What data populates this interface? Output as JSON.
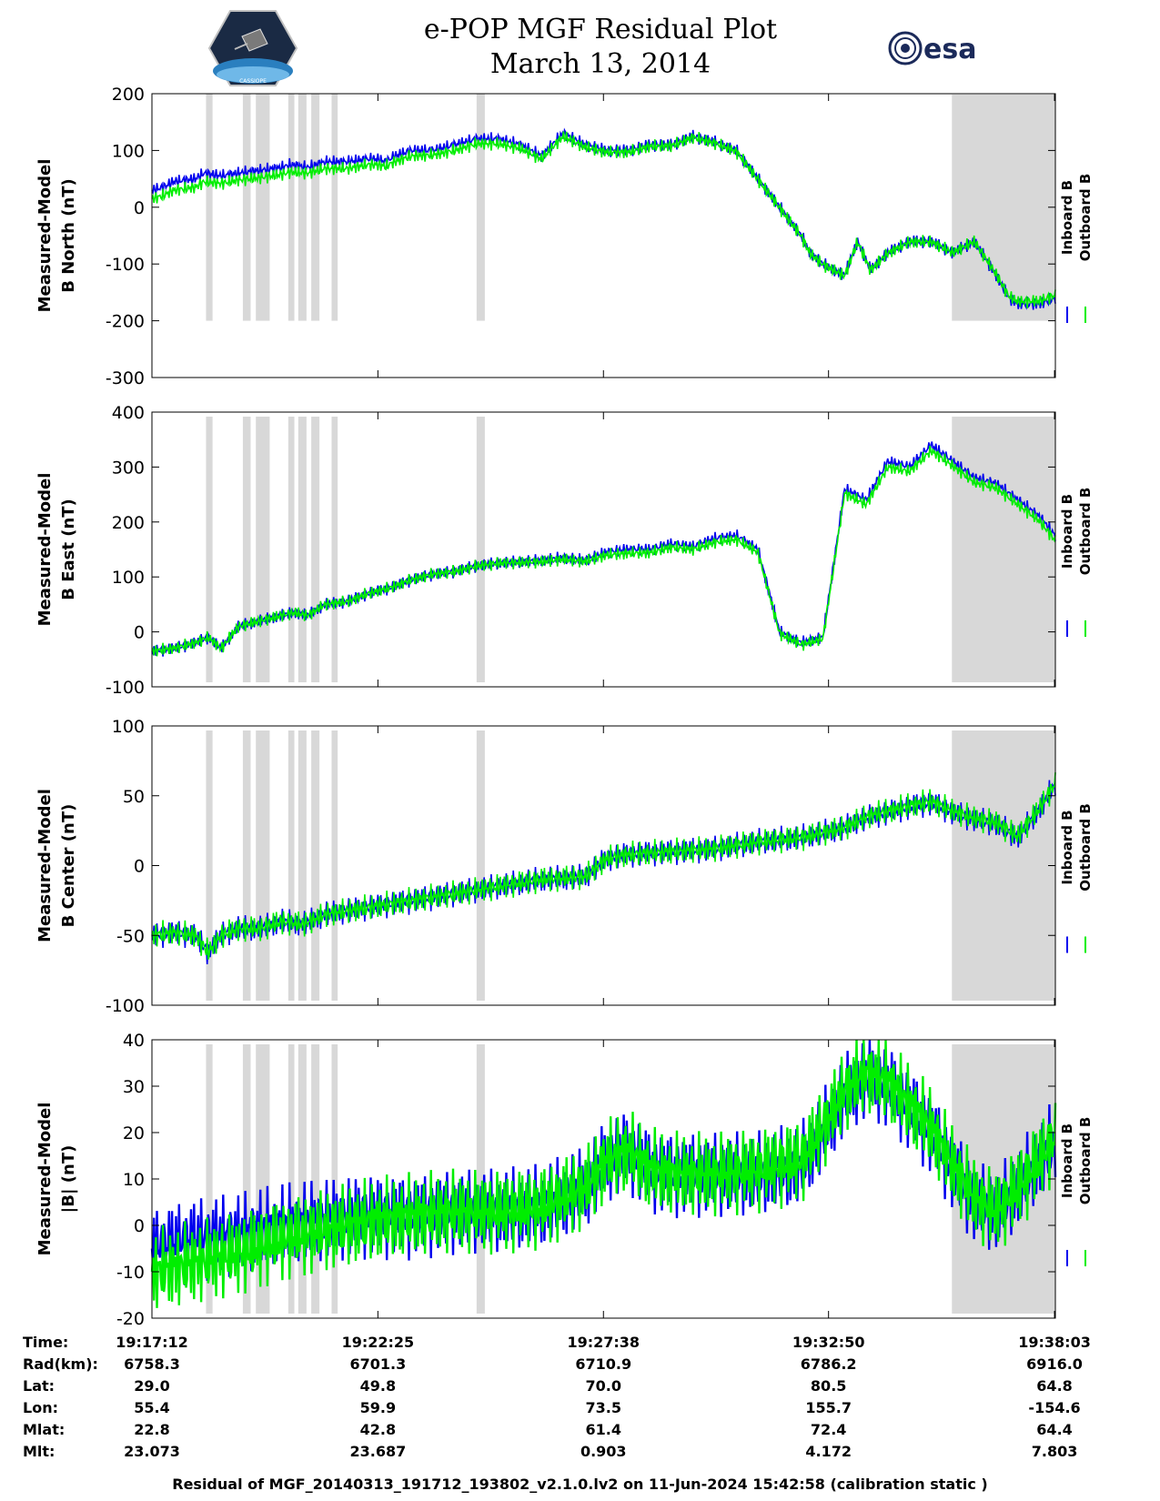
{
  "title": {
    "line1": "e-POP MGF Residual Plot",
    "line2": "March 13, 2014"
  },
  "logos": {
    "mission": "cassiope-mission-logo",
    "agency": "esa",
    "mission_text": "CASSIOPE"
  },
  "colors": {
    "inboard": "#0000ee",
    "outboard": "#00ee00",
    "shade": "#d8d8d8"
  },
  "legend": {
    "inboard": "Inboard B",
    "outboard": "Outboard B"
  },
  "chart_data": [
    {
      "type": "line",
      "ylabel": [
        "Measured-Model",
        "B North (nT)"
      ],
      "ylim": [
        -300,
        200
      ],
      "yticks": [
        200,
        100,
        0,
        -100,
        -200,
        -300
      ],
      "series": [
        {
          "name": "Inboard B",
          "x": [
            0,
            0.25,
            0.5,
            1,
            1.2,
            1.6,
            2,
            2.5,
            3,
            3.2,
            3.6,
            4,
            4.5,
            5,
            5.2,
            5.4,
            5.6,
            5.8,
            6,
            6.5,
            7,
            7.5,
            8,
            8.5,
            9,
            9.5,
            10,
            10.5,
            11,
            11.5,
            12,
            12.5,
            13,
            13.5,
            14,
            14.5,
            15,
            15.2,
            15.5,
            16,
            16.3,
            16.6,
            17,
            17.5,
            18,
            18.5,
            19,
            19.5,
            19.8,
            20,
            20.5,
            20.87
          ],
          "y": [
            30,
            35,
            45,
            50,
            60,
            55,
            60,
            65,
            70,
            75,
            70,
            80,
            80,
            85,
            85,
            80,
            90,
            95,
            100,
            100,
            110,
            120,
            120,
            110,
            90,
            130,
            110,
            100,
            100,
            110,
            110,
            125,
            115,
            100,
            50,
            0,
            -50,
            -80,
            -100,
            -120,
            -60,
            -110,
            -80,
            -60,
            -60,
            -80,
            -60,
            -120,
            -160,
            -170,
            -170,
            -160
          ]
        },
        {
          "name": "Outboard B",
          "x": [
            0,
            0.25,
            0.5,
            1,
            1.2,
            1.6,
            2,
            2.5,
            3,
            3.2,
            3.6,
            4,
            4.5,
            5,
            5.2,
            5.4,
            5.6,
            5.8,
            6,
            6.5,
            7,
            7.5,
            8,
            8.5,
            9,
            9.5,
            10,
            10.5,
            11,
            11.5,
            12,
            12.5,
            13,
            13.5,
            14,
            14.5,
            15,
            15.2,
            15.5,
            16,
            16.3,
            16.6,
            17,
            17.5,
            18,
            18.5,
            19,
            19.5,
            19.8,
            20,
            20.5,
            20.87
          ],
          "y": [
            15,
            20,
            30,
            35,
            45,
            42,
            48,
            52,
            58,
            62,
            60,
            68,
            68,
            75,
            75,
            72,
            80,
            85,
            90,
            92,
            100,
            112,
            112,
            104,
            85,
            125,
            106,
            97,
            97,
            107,
            108,
            123,
            113,
            98,
            49,
            -1,
            -51,
            -81,
            -101,
            -121,
            -61,
            -111,
            -81,
            -61,
            -61,
            -80,
            -60,
            -118,
            -157,
            -166,
            -165,
            -155
          ]
        }
      ]
    },
    {
      "type": "line",
      "ylabel": [
        "Measured-Model",
        "B East (nT)"
      ],
      "ylim": [
        -100,
        400
      ],
      "yticks": [
        400,
        300,
        200,
        100,
        0,
        -100
      ],
      "series": [
        {
          "name": "Inboard B",
          "x": [
            0,
            0.5,
            1,
            1.3,
            1.6,
            2,
            2.5,
            3,
            3.3,
            3.6,
            4,
            4.5,
            5,
            5.5,
            6,
            6.5,
            7,
            7.5,
            8,
            9,
            9.5,
            10,
            10.5,
            11,
            11.5,
            12,
            12.5,
            13,
            13.5,
            14,
            14.5,
            15,
            15.5,
            16,
            16.5,
            17,
            17.5,
            18,
            18.5,
            19,
            19.5,
            20,
            20.5,
            20.87
          ],
          "y": [
            -35,
            -30,
            -20,
            -10,
            -30,
            10,
            20,
            30,
            35,
            30,
            50,
            55,
            70,
            80,
            95,
            105,
            110,
            120,
            125,
            130,
            135,
            130,
            145,
            150,
            150,
            160,
            155,
            170,
            175,
            150,
            0,
            -20,
            -10,
            260,
            240,
            310,
            300,
            340,
            310,
            280,
            270,
            240,
            210,
            175
          ]
        },
        {
          "name": "Outboard B",
          "x": [
            0,
            0.5,
            1,
            1.3,
            1.6,
            2,
            2.5,
            3,
            3.3,
            3.6,
            4,
            4.5,
            5,
            5.5,
            6,
            6.5,
            7,
            7.5,
            8,
            9,
            9.5,
            10,
            10.5,
            11,
            11.5,
            12,
            12.5,
            13,
            13.5,
            14,
            14.5,
            15,
            15.5,
            16,
            16.5,
            17,
            17.5,
            18,
            18.5,
            19,
            19.5,
            20,
            20.5,
            20.87
          ],
          "y": [
            -35,
            -30,
            -20,
            -10,
            -30,
            10,
            20,
            30,
            35,
            30,
            50,
            55,
            70,
            80,
            95,
            105,
            110,
            120,
            125,
            128,
            132,
            128,
            140,
            143,
            144,
            154,
            150,
            163,
            168,
            145,
            -3,
            -23,
            -13,
            252,
            232,
            300,
            292,
            330,
            302,
            272,
            262,
            232,
            202,
            166
          ]
        }
      ]
    },
    {
      "type": "line",
      "ylabel": [
        "Measured-Model",
        "B Center (nT)"
      ],
      "ylim": [
        -100,
        100
      ],
      "yticks": [
        100,
        50,
        0,
        -50,
        -100
      ],
      "series": [
        {
          "name": "Inboard B",
          "x": [
            0,
            0.5,
            1,
            1.3,
            1.6,
            2,
            2.5,
            3,
            3.5,
            4,
            5,
            6,
            7,
            8,
            9,
            10,
            10.5,
            11,
            12,
            13,
            14,
            15,
            16,
            16.3,
            16.6,
            17,
            17.5,
            18,
            18.5,
            19,
            19.5,
            20,
            20.5,
            20.87
          ],
          "y": [
            -50,
            -48,
            -50,
            -62,
            -50,
            -45,
            -45,
            -40,
            -42,
            -35,
            -30,
            -25,
            -20,
            -15,
            -10,
            -8,
            5,
            8,
            10,
            12,
            17,
            20,
            27,
            32,
            35,
            38,
            42,
            45,
            38,
            33,
            30,
            20,
            40,
            58
          ]
        },
        {
          "name": "Outboard B",
          "x": [
            0,
            0.5,
            1,
            1.3,
            1.6,
            2,
            2.5,
            3,
            3.5,
            4,
            5,
            6,
            7,
            8,
            9,
            10,
            10.5,
            11,
            12,
            13,
            14,
            15,
            16,
            16.3,
            16.6,
            17,
            17.5,
            18,
            18.5,
            19,
            19.5,
            20,
            20.5,
            20.87
          ],
          "y": [
            -50,
            -48,
            -50,
            -62,
            -50,
            -45,
            -45,
            -40,
            -42,
            -35,
            -30,
            -25,
            -20,
            -15,
            -10,
            -8,
            5,
            8,
            10,
            12,
            17,
            20,
            27,
            32,
            36,
            39,
            43,
            46,
            39,
            34,
            31,
            21,
            41,
            59
          ]
        }
      ]
    },
    {
      "type": "line",
      "ylabel": [
        "Measured-Model",
        "|B| (nT)"
      ],
      "ylim": [
        -20,
        40
      ],
      "yticks": [
        40,
        30,
        20,
        10,
        0,
        -10,
        -20
      ],
      "series": [
        {
          "name": "Inboard B",
          "x": [
            0,
            1,
            2,
            3,
            4,
            5,
            6,
            7,
            8,
            9,
            10,
            10.5,
            11,
            11.5,
            12,
            13,
            14,
            15,
            15.5,
            16,
            16.5,
            17,
            17.5,
            18,
            18.5,
            19,
            19.5,
            20,
            20.5,
            20.87
          ],
          "y": [
            -5,
            -3,
            -2,
            0,
            1,
            2,
            2,
            3,
            3,
            4,
            8,
            14,
            16,
            12,
            11,
            11,
            11,
            13,
            20,
            28,
            32,
            30,
            25,
            20,
            12,
            5,
            3,
            8,
            14,
            18
          ]
        },
        {
          "name": "Outboard B",
          "x": [
            0,
            1,
            2,
            3,
            4,
            5,
            6,
            7,
            8,
            9,
            10,
            10.5,
            11,
            11.5,
            12,
            13,
            14,
            15,
            15.5,
            16,
            16.5,
            17,
            17.5,
            18,
            18.5,
            19,
            19.5,
            20,
            20.5,
            20.87
          ],
          "y": [
            -10,
            -8,
            -6,
            -3,
            -1,
            1,
            2,
            3,
            3,
            4,
            8,
            14,
            16,
            12,
            11,
            11,
            12,
            14,
            21,
            29,
            33,
            31,
            26,
            21,
            13,
            6,
            3,
            8,
            14,
            19
          ]
        }
      ]
    }
  ],
  "xaxis": {
    "range_min": [
      0,
      20.87
    ],
    "tick_minutes": [
      0,
      5.22,
      10.43,
      15.63,
      20.85
    ]
  },
  "shaded_intervals_min": [
    [
      1.25,
      1.4
    ],
    [
      2.1,
      2.28
    ],
    [
      2.4,
      2.72
    ],
    [
      3.15,
      3.29
    ],
    [
      3.38,
      3.57
    ],
    [
      3.68,
      3.87
    ],
    [
      4.15,
      4.29
    ],
    [
      7.5,
      7.69
    ],
    [
      18.48,
      20.87
    ]
  ],
  "ephemeris": {
    "labels": [
      "Time:",
      "Rad(km):",
      "Lat:",
      "Lon:",
      "Mlat:",
      "Mlt:"
    ],
    "columns": [
      [
        "19:17:12",
        "6758.3",
        "29.0",
        "55.4",
        "22.8",
        "23.073"
      ],
      [
        "19:22:25",
        "6701.3",
        "49.8",
        "59.9",
        "42.8",
        "23.687"
      ],
      [
        "19:27:38",
        "6710.9",
        "70.0",
        "73.5",
        "61.4",
        "0.903"
      ],
      [
        "19:32:50",
        "6786.2",
        "80.5",
        "155.7",
        "72.4",
        "4.172"
      ],
      [
        "19:38:03",
        "6916.0",
        "64.8",
        "-154.6",
        "64.4",
        "7.803"
      ]
    ]
  },
  "footer": "Residual of MGF_20140313_191712_193802_v2.1.0.lv2 on 11-Jun-2024 15:42:58 (calibration static )"
}
